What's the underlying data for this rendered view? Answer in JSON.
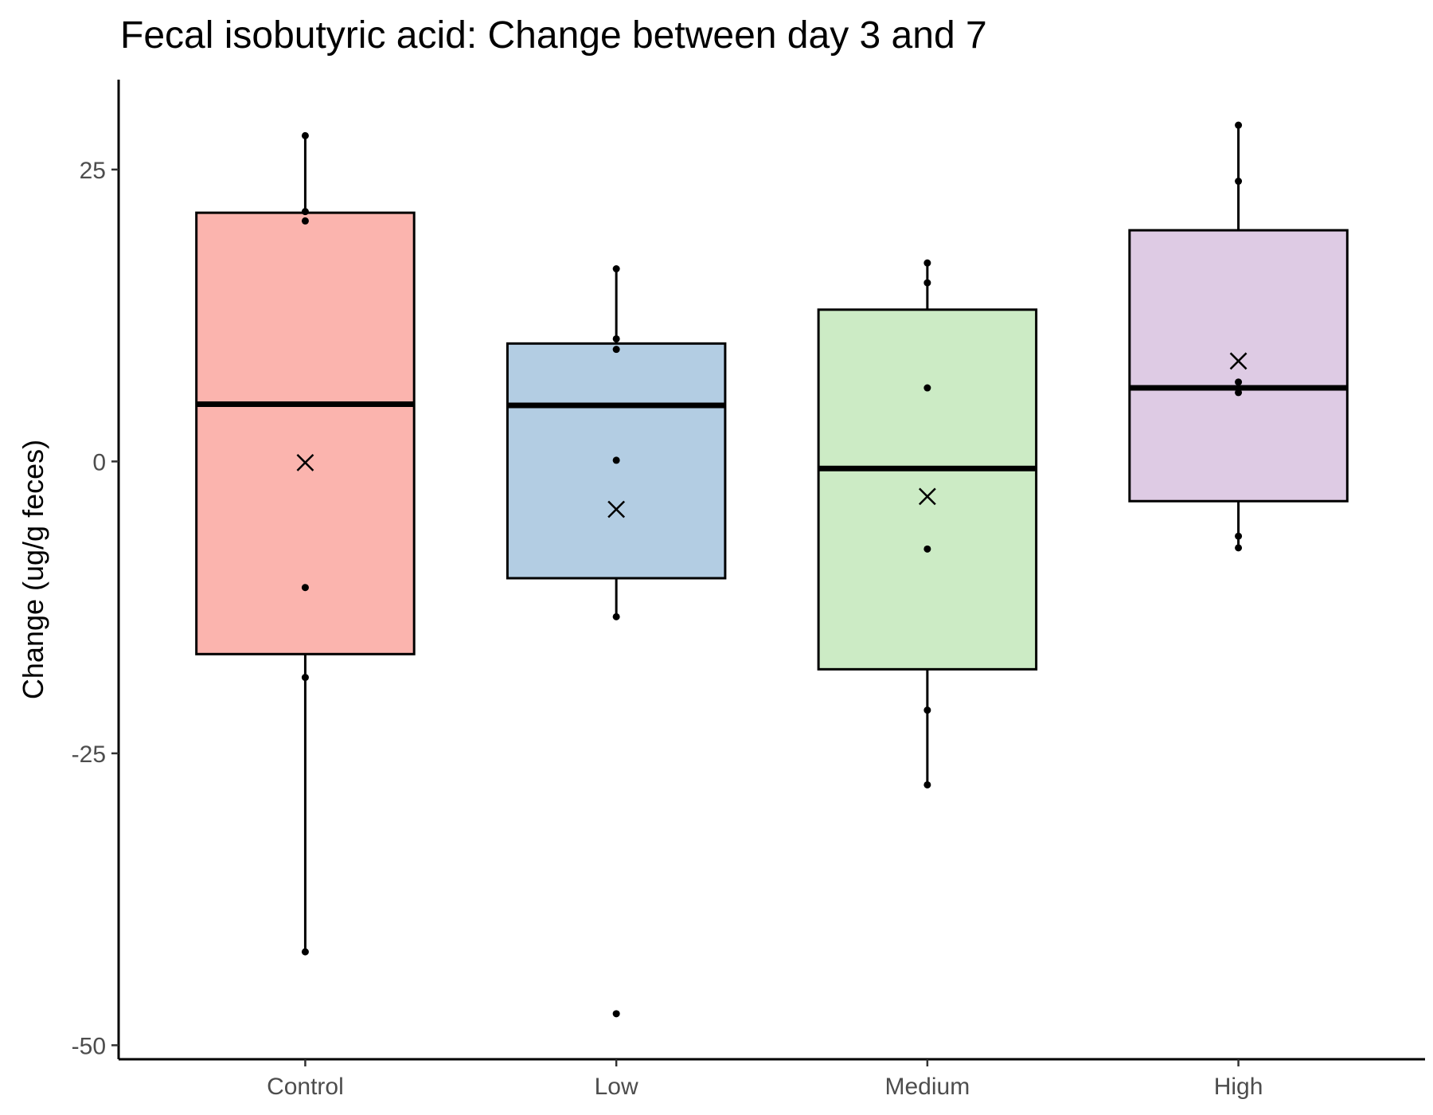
{
  "chart_data": {
    "type": "box",
    "title": "Fecal isobutyric acid: Change between day 3 and 7",
    "xlabel": "",
    "ylabel": "Change (ug/g feces)",
    "ylim": [
      -51.2,
      32.7
    ],
    "yticks": [
      25,
      0,
      -25,
      -50
    ],
    "ytick_labels": [
      "25",
      "0",
      "-25",
      "-50"
    ],
    "categories": [
      "Control",
      "Low",
      "Medium",
      "High"
    ],
    "grid": false,
    "legend": "none",
    "boxes": [
      {
        "category": "Control",
        "fill": "#FBB4AE",
        "q1": -16.5,
        "median": 4.9,
        "q3": 21.3,
        "whisker_low": -42.0,
        "whisker_high": 27.9,
        "mean": -0.1,
        "points": [
          27.9,
          21.4,
          20.6,
          -10.8,
          -18.5,
          -42.0
        ]
      },
      {
        "category": "Low",
        "fill": "#B3CDE3",
        "q1": -10.0,
        "median": 4.8,
        "q3": 10.1,
        "whisker_low": -13.3,
        "whisker_high": 16.5,
        "mean": -4.1,
        "points": [
          16.5,
          10.5,
          9.6,
          0.1,
          -13.3,
          -47.3
        ]
      },
      {
        "category": "Medium",
        "fill": "#CCEBC5",
        "q1": -17.8,
        "median": -0.6,
        "q3": 13.0,
        "whisker_low": -27.7,
        "whisker_high": 17.0,
        "mean": -3.0,
        "points": [
          17.0,
          15.3,
          6.3,
          -7.5,
          -21.3,
          -27.7
        ]
      },
      {
        "category": "High",
        "fill": "#DECBE4",
        "q1": -3.4,
        "median": 6.3,
        "q3": 19.8,
        "whisker_low": -7.4,
        "whisker_high": 28.8,
        "mean": 8.6,
        "points": [
          28.8,
          24.0,
          6.8,
          5.9,
          -6.4,
          -7.4
        ]
      }
    ]
  }
}
